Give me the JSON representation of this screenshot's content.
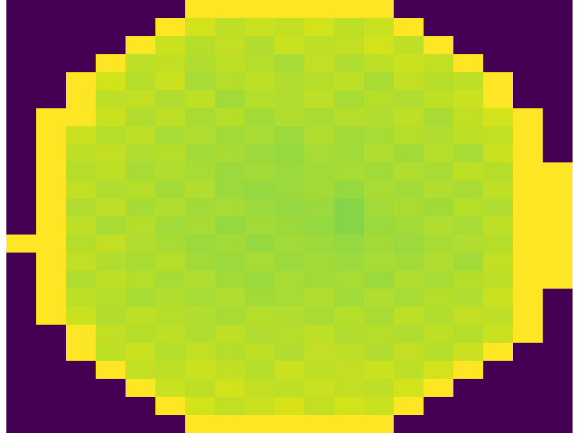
{
  "chart_data": {
    "type": "heatmap",
    "color": "viridis",
    "tick_labels": false,
    "zlim": [
      0,
      1
    ],
    "cells": [
      [
        0,
        0,
        0,
        0,
        0,
        0,
        1,
        1,
        1,
        1,
        1,
        1,
        1,
        0,
        0,
        0,
        0,
        0,
        0
      ],
      [
        0,
        0,
        0,
        0,
        0,
        1,
        0.93,
        0.9,
        0.92,
        0.91,
        0.93,
        0.9,
        0.92,
        1,
        0,
        0,
        0,
        0,
        0
      ],
      [
        0,
        0,
        0,
        0,
        1,
        0.92,
        0.89,
        0.91,
        0.88,
        0.92,
        0.9,
        0.91,
        0.93,
        0.9,
        1,
        0,
        0,
        0,
        0
      ],
      [
        0,
        0,
        0,
        1,
        0.9,
        0.91,
        0.88,
        0.9,
        0.89,
        0.87,
        0.91,
        0.88,
        0.9,
        0.92,
        0.91,
        1,
        0,
        0,
        0
      ],
      [
        0,
        0,
        1,
        0.93,
        0.89,
        0.92,
        0.87,
        0.89,
        0.9,
        0.88,
        0.89,
        0.9,
        0.87,
        0.91,
        0.89,
        0.9,
        1,
        0,
        0
      ],
      [
        0,
        0,
        1,
        0.9,
        0.91,
        0.88,
        0.9,
        0.86,
        0.89,
        0.88,
        0.9,
        0.87,
        0.89,
        0.88,
        0.9,
        0.92,
        1,
        0,
        0
      ],
      [
        0,
        1,
        1,
        0.92,
        0.88,
        0.9,
        0.87,
        0.89,
        0.86,
        0.88,
        0.87,
        0.89,
        0.88,
        0.9,
        0.87,
        0.91,
        0.93,
        1,
        0
      ],
      [
        0,
        1,
        0.92,
        0.89,
        0.9,
        0.87,
        0.88,
        0.86,
        0.87,
        0.85,
        0.88,
        0.86,
        0.87,
        0.89,
        0.88,
        0.9,
        0.91,
        1,
        0
      ],
      [
        0,
        1,
        0.9,
        0.91,
        0.88,
        0.89,
        0.86,
        0.87,
        0.85,
        0.84,
        0.87,
        0.86,
        0.88,
        0.86,
        0.89,
        0.87,
        0.92,
        1,
        0
      ],
      [
        0,
        1,
        0.89,
        0.9,
        0.87,
        0.88,
        0.87,
        0.85,
        0.86,
        0.85,
        0.86,
        0.87,
        0.86,
        0.88,
        0.87,
        0.9,
        0.89,
        1,
        1
      ],
      [
        0,
        1,
        0.91,
        0.88,
        0.89,
        0.86,
        0.88,
        0.85,
        0.84,
        0.85,
        0.86,
        0.84,
        0.87,
        0.86,
        0.88,
        0.87,
        0.9,
        1,
        1
      ],
      [
        0,
        1,
        0.88,
        0.9,
        0.87,
        0.88,
        0.86,
        0.87,
        0.85,
        0.84,
        0.85,
        0.82,
        0.86,
        0.87,
        0.86,
        0.89,
        0.88,
        1,
        1
      ],
      [
        0,
        1,
        0.9,
        0.87,
        0.89,
        0.86,
        0.87,
        0.84,
        0.86,
        0.85,
        0.84,
        0.82,
        0.85,
        0.86,
        0.88,
        0.87,
        0.9,
        1,
        1
      ],
      [
        1,
        1,
        0.89,
        0.91,
        0.88,
        0.87,
        0.85,
        0.86,
        0.84,
        0.86,
        0.85,
        0.84,
        0.86,
        0.85,
        0.87,
        0.88,
        0.89,
        1,
        1
      ],
      [
        0,
        1,
        0.91,
        0.88,
        0.87,
        0.89,
        0.86,
        0.85,
        0.87,
        0.85,
        0.86,
        0.85,
        0.87,
        0.86,
        0.88,
        0.86,
        0.91,
        1,
        1
      ],
      [
        0,
        1,
        0.88,
        0.9,
        0.89,
        0.87,
        0.88,
        0.86,
        0.85,
        0.87,
        0.86,
        0.87,
        0.85,
        0.88,
        0.87,
        0.89,
        0.9,
        1,
        1
      ],
      [
        0,
        1,
        0.9,
        0.89,
        0.87,
        0.88,
        0.87,
        0.88,
        0.86,
        0.87,
        0.88,
        0.86,
        0.88,
        0.87,
        0.89,
        0.88,
        0.92,
        1,
        0
      ],
      [
        0,
        1,
        0.92,
        0.88,
        0.9,
        0.89,
        0.88,
        0.87,
        0.89,
        0.88,
        0.87,
        0.89,
        0.87,
        0.9,
        0.88,
        0.91,
        0.9,
        1,
        0
      ],
      [
        0,
        0,
        1,
        0.91,
        0.89,
        0.9,
        0.88,
        0.9,
        0.88,
        0.89,
        0.9,
        0.88,
        0.89,
        0.88,
        0.9,
        0.89,
        0.92,
        1,
        0
      ],
      [
        0,
        0,
        1,
        0.9,
        0.92,
        0.89,
        0.91,
        0.89,
        0.9,
        0.88,
        0.91,
        0.9,
        0.88,
        0.91,
        0.89,
        0.92,
        1,
        0,
        0
      ],
      [
        0,
        0,
        0,
        1,
        0.91,
        0.9,
        0.92,
        0.91,
        0.89,
        0.92,
        0.9,
        0.91,
        0.92,
        0.9,
        0.93,
        1,
        0,
        0,
        0
      ],
      [
        0,
        0,
        0,
        0,
        1,
        0.92,
        0.9,
        0.93,
        0.91,
        0.9,
        0.92,
        0.91,
        0.9,
        0.93,
        1,
        0,
        0,
        0,
        0
      ],
      [
        0,
        0,
        0,
        0,
        0,
        1,
        0.93,
        0.91,
        0.92,
        0.94,
        0.91,
        0.93,
        0.92,
        1,
        0,
        0,
        0,
        0,
        0
      ],
      [
        0,
        0,
        0,
        0,
        0,
        0,
        1,
        1,
        1,
        1,
        1,
        1,
        1,
        0,
        0,
        0,
        0,
        0,
        0
      ]
    ]
  }
}
